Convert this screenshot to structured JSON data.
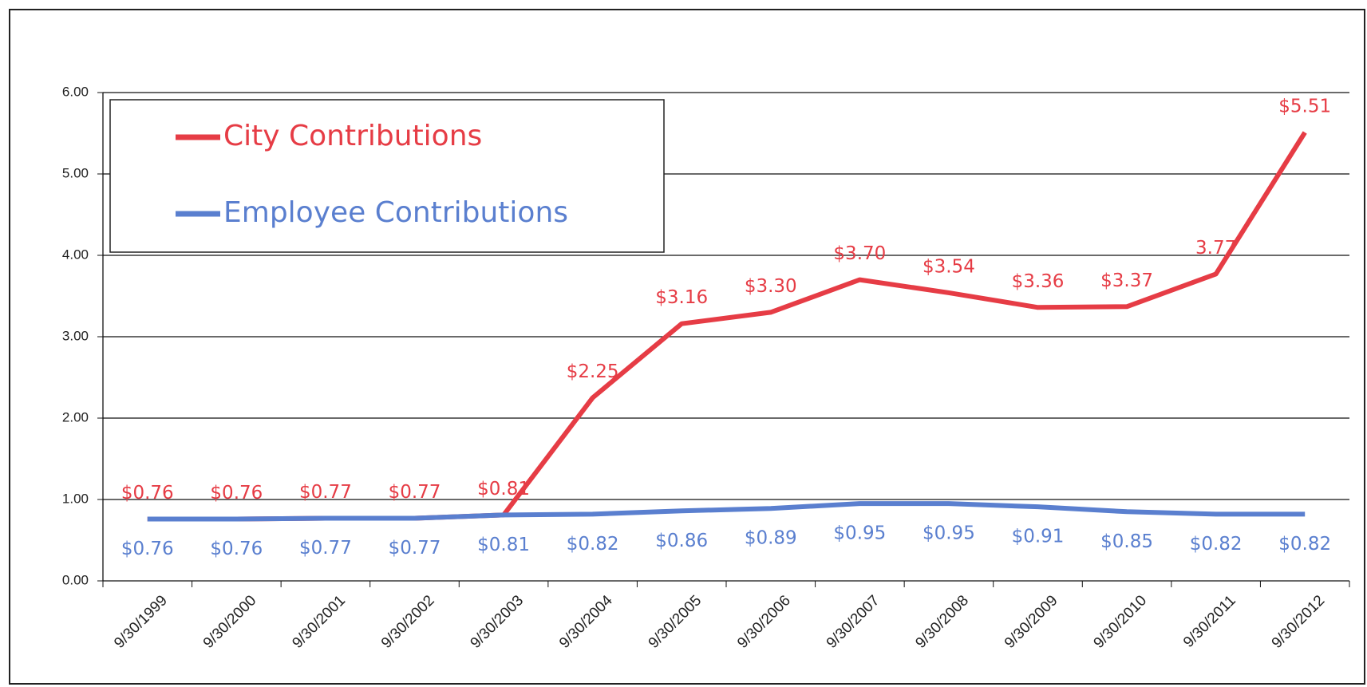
{
  "chart_data": {
    "type": "line",
    "categories": [
      "9/30/1999",
      "9/30/2000",
      "9/30/2001",
      "9/30/2002",
      "9/30/2003",
      "9/30/2004",
      "9/30/2005",
      "9/30/2006",
      "9/30/2007",
      "9/30/2008",
      "9/30/2009",
      "9/30/2010",
      "9/30/2011",
      "9/30/2012"
    ],
    "series": [
      {
        "name": "City Contributions",
        "color": "#e63c45",
        "values": [
          0.76,
          0.76,
          0.77,
          0.77,
          0.81,
          2.25,
          3.16,
          3.3,
          3.7,
          3.54,
          3.36,
          3.37,
          3.77,
          5.51
        ],
        "value_labels": [
          "$0.76",
          "$0.76",
          "$0.77",
          "$0.77",
          "$0.81",
          "$2.25",
          "$3.16",
          "$3.30",
          "$3.70",
          "$3.54",
          "$3.36",
          "$3.37",
          "3.77",
          "$5.51"
        ]
      },
      {
        "name": "Employee Contributions",
        "color": "#5a7fcf",
        "values": [
          0.76,
          0.76,
          0.77,
          0.77,
          0.81,
          0.82,
          0.86,
          0.89,
          0.95,
          0.95,
          0.91,
          0.85,
          0.82,
          0.82
        ],
        "value_labels": [
          "$0.76",
          "$0.76",
          "$0.77",
          "$0.77",
          "$0.81",
          "$0.82",
          "$0.86",
          "$0.89",
          "$0.95",
          "$0.95",
          "$0.91",
          "$0.85",
          "$0.82",
          "$0.82"
        ]
      }
    ],
    "ylim": [
      0,
      6
    ],
    "yticks": [
      {
        "value": 0,
        "label": "0.00"
      },
      {
        "value": 1,
        "label": "1.00"
      },
      {
        "value": 2,
        "label": "2.00"
      },
      {
        "value": 3,
        "label": "3.00"
      },
      {
        "value": 4,
        "label": "4.00"
      },
      {
        "value": 5,
        "label": "5.00"
      },
      {
        "value": 6,
        "label": "6.00"
      }
    ],
    "grid": true,
    "legend": "upper left"
  }
}
